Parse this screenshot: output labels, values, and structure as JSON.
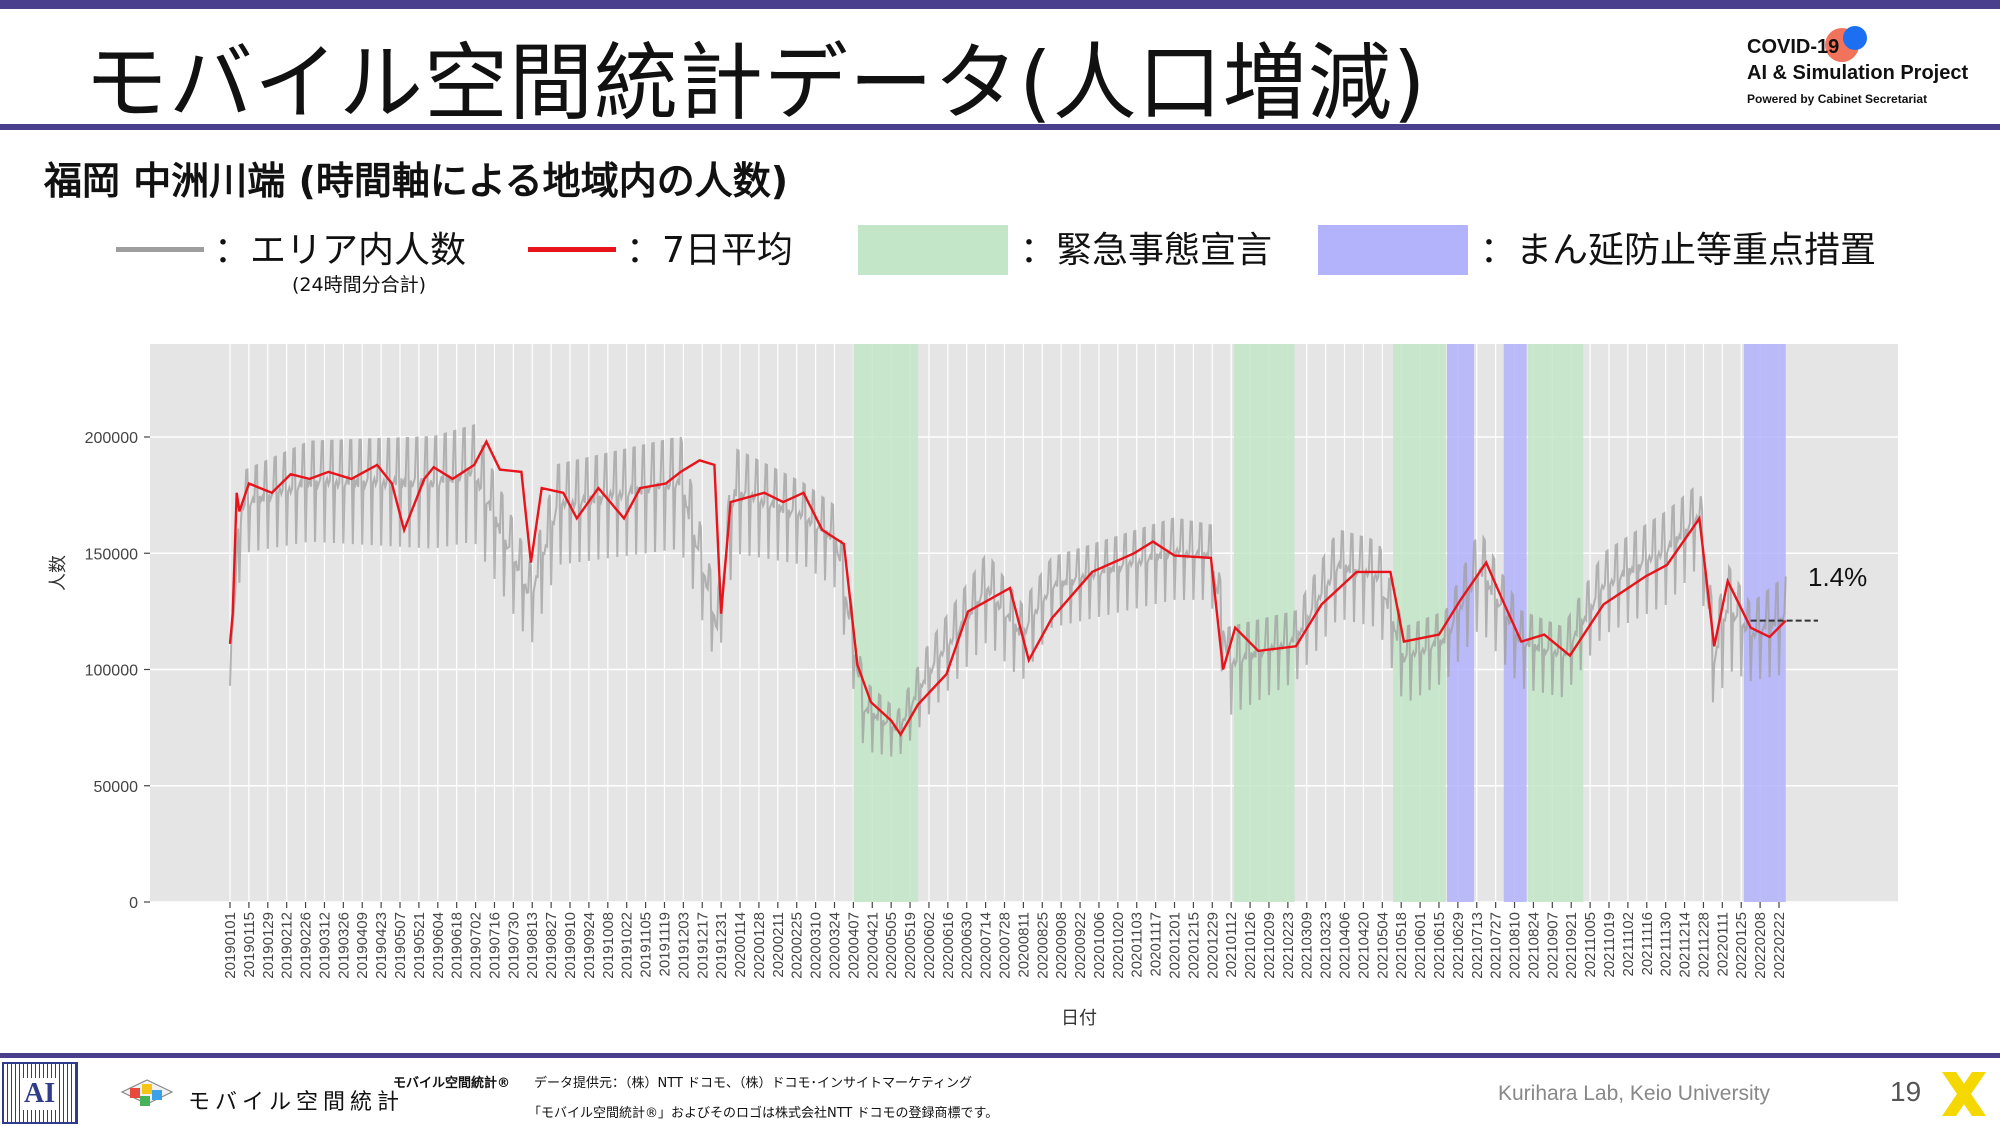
{
  "header": {
    "title": "モバイル空間統計データ(人口増減)",
    "logo_line1": "COVID-19",
    "logo_line2": "AI & Simulation Project",
    "logo_line3": "Powered by Cabinet Secretariat"
  },
  "subtitle": "福岡 中洲川端 (時間軸による地域内の人数)",
  "legend": {
    "area_count": "：エリア内人数",
    "area_count_note": "(24時間分合計)",
    "avg7": "：7日平均",
    "emergency": "：緊急事態宣言",
    "quasi": "：まん延防止等重点措置"
  },
  "colors": {
    "raw": "#9e9e9e",
    "avg": "#e8141b",
    "emergency": "#c3e6c8",
    "quasi": "#b3b3fb",
    "panel": "#e5e5e5",
    "accent": "#4a3f8c"
  },
  "annotation": {
    "change": "1.4%"
  },
  "chart_data": {
    "type": "line",
    "xlabel": "日付",
    "ylabel": "人数",
    "ylim": [
      0,
      240000
    ],
    "yticks": [
      0,
      50000,
      100000,
      150000,
      200000
    ],
    "ytick_labels": [
      "0",
      "50000",
      "100000",
      "150000",
      "200000"
    ],
    "grid": true,
    "x_ticks": [
      "20190101",
      "20190115",
      "20190129",
      "20190212",
      "20190226",
      "20190312",
      "20190326",
      "20190409",
      "20190423",
      "20190507",
      "20190521",
      "20190604",
      "20190618",
      "20190702",
      "20190716",
      "20190730",
      "20190813",
      "20190827",
      "20190910",
      "20190924",
      "20191008",
      "20191022",
      "20191105",
      "20191119",
      "20191203",
      "20191217",
      "20191231",
      "20200114",
      "20200128",
      "20200211",
      "20200225",
      "20200310",
      "20200324",
      "20200407",
      "20200421",
      "20200505",
      "20200519",
      "20200602",
      "20200616",
      "20200630",
      "20200714",
      "20200728",
      "20200811",
      "20200825",
      "20200908",
      "20200922",
      "20201006",
      "20201020",
      "20201103",
      "20201117",
      "20201201",
      "20201215",
      "20201229",
      "20210112",
      "20210126",
      "20210209",
      "20210223",
      "20210309",
      "20210323",
      "20210406",
      "20210420",
      "20210504",
      "20210518",
      "20210601",
      "20210615",
      "20210629",
      "20210713",
      "20210727",
      "20210810",
      "20210824",
      "20210907",
      "20210921",
      "20211005",
      "20211019",
      "20211102",
      "20211116",
      "20211130",
      "20211214",
      "20211228",
      "20220111",
      "20220125",
      "20220208",
      "20220222"
    ],
    "emergency_periods": [
      [
        "20200407",
        "20200525"
      ],
      [
        "20210114",
        "20210228"
      ],
      [
        "20210512",
        "20210620"
      ],
      [
        "20210820",
        "20210930"
      ]
    ],
    "quasi_periods": [
      [
        "20210621",
        "20210711"
      ],
      [
        "20210802",
        "20210819"
      ],
      [
        "20220127",
        "20220227"
      ]
    ],
    "series": [
      {
        "name": "エリア内人数",
        "anchors": [
          [
            "20190101",
            93000,
            112000
          ],
          [
            "20190110",
            150000,
            185000
          ],
          [
            "20190301",
            155000,
            198000
          ],
          [
            "20190601",
            152000,
            200000
          ],
          [
            "20190701",
            155000,
            205000
          ],
          [
            "20190812",
            110000,
            145000
          ],
          [
            "20190901",
            145000,
            188000
          ],
          [
            "20191201",
            152000,
            200000
          ],
          [
            "20191228",
            100000,
            130000
          ],
          [
            "20200110",
            150000,
            195000
          ],
          [
            "20200301",
            145000,
            180000
          ],
          [
            "20200325",
            135000,
            170000
          ],
          [
            "20200415",
            65000,
            95000
          ],
          [
            "20200510",
            62000,
            82000
          ],
          [
            "20200601",
            80000,
            110000
          ],
          [
            "20200715",
            112000,
            150000
          ],
          [
            "20200810",
            95000,
            128000
          ],
          [
            "20200901",
            118000,
            148000
          ],
          [
            "20201201",
            130000,
            165000
          ],
          [
            "20201228",
            130000,
            162000
          ],
          [
            "20210110",
            80000,
            118000
          ],
          [
            "20210301",
            95000,
            125000
          ],
          [
            "20210401",
            122000,
            160000
          ],
          [
            "20210501",
            118000,
            155000
          ],
          [
            "20210520",
            85000,
            118000
          ],
          [
            "20210620",
            95000,
            125000
          ],
          [
            "20210715",
            118000,
            160000
          ],
          [
            "20210815",
            92000,
            125000
          ],
          [
            "20210915",
            88000,
            118000
          ],
          [
            "20211015",
            115000,
            150000
          ],
          [
            "20211201",
            128000,
            168000
          ],
          [
            "20211225",
            145000,
            180000
          ],
          [
            "20220105",
            80000,
            120000
          ],
          [
            "20220115",
            100000,
            145000
          ],
          [
            "20220201",
            95000,
            128000
          ],
          [
            "20220227",
            98000,
            140000
          ]
        ]
      },
      {
        "name": "7日平均",
        "points": [
          [
            "20190101",
            111000
          ],
          [
            "20190103",
            124000
          ],
          [
            "20190106",
            176000
          ],
          [
            "20190108",
            168000
          ],
          [
            "20190115",
            180000
          ],
          [
            "20190201",
            176000
          ],
          [
            "20190215",
            184000
          ],
          [
            "20190301",
            182000
          ],
          [
            "20190315",
            185000
          ],
          [
            "20190401",
            182000
          ],
          [
            "20190420",
            188000
          ],
          [
            "20190501",
            180000
          ],
          [
            "20190510",
            160000
          ],
          [
            "20190525",
            182000
          ],
          [
            "20190601",
            187000
          ],
          [
            "20190615",
            182000
          ],
          [
            "20190701",
            188000
          ],
          [
            "20190710",
            198000
          ],
          [
            "20190720",
            186000
          ],
          [
            "20190805",
            185000
          ],
          [
            "20190812",
            146000
          ],
          [
            "20190820",
            178000
          ],
          [
            "20190905",
            176000
          ],
          [
            "20190915",
            165000
          ],
          [
            "20191001",
            178000
          ],
          [
            "20191020",
            165000
          ],
          [
            "20191101",
            178000
          ],
          [
            "20191120",
            180000
          ],
          [
            "20191201",
            185000
          ],
          [
            "20191215",
            190000
          ],
          [
            "20191226",
            188000
          ],
          [
            "20191231",
            124000
          ],
          [
            "20200107",
            172000
          ],
          [
            "20200201",
            176000
          ],
          [
            "20200215",
            172000
          ],
          [
            "20200301",
            176000
          ],
          [
            "20200315",
            160000
          ],
          [
            "20200331",
            154000
          ],
          [
            "20200410",
            102000
          ],
          [
            "20200420",
            86000
          ],
          [
            "20200505",
            78000
          ],
          [
            "20200512",
            72000
          ],
          [
            "20200525",
            85000
          ],
          [
            "20200615",
            98000
          ],
          [
            "20200701",
            125000
          ],
          [
            "20200801",
            135000
          ],
          [
            "20200815",
            104000
          ],
          [
            "20200901",
            122000
          ],
          [
            "20201001",
            142000
          ],
          [
            "20201101",
            150000
          ],
          [
            "20201115",
            155000
          ],
          [
            "20201201",
            149000
          ],
          [
            "20201228",
            148000
          ],
          [
            "20210106",
            100000
          ],
          [
            "20210115",
            118000
          ],
          [
            "20210201",
            108000
          ],
          [
            "20210301",
            110000
          ],
          [
            "20210320",
            128000
          ],
          [
            "20210415",
            142000
          ],
          [
            "20210510",
            142000
          ],
          [
            "20210520",
            112000
          ],
          [
            "20210615",
            115000
          ],
          [
            "20210701",
            130000
          ],
          [
            "20210720",
            146000
          ],
          [
            "20210801",
            130000
          ],
          [
            "20210815",
            112000
          ],
          [
            "20210901",
            115000
          ],
          [
            "20210920",
            106000
          ],
          [
            "20211015",
            128000
          ],
          [
            "20211115",
            140000
          ],
          [
            "20211201",
            145000
          ],
          [
            "20211225",
            165000
          ],
          [
            "20220105",
            110000
          ],
          [
            "20220115",
            138000
          ],
          [
            "20220201",
            118000
          ],
          [
            "20220215",
            114000
          ],
          [
            "20220227",
            121000
          ]
        ]
      }
    ]
  },
  "footer": {
    "brand": "モバイル空間統計",
    "registered": "モバイル空間統計®",
    "source": "データ提供元：（株）NTT ドコモ、（株）ドコモ･インサイトマーケティング",
    "trademark": "「モバイル空間統計®」およびそのロゴは株式会社NTT ドコモの登録商標です。",
    "lab": "Kurihara Lab, Keio University",
    "page_number": "19"
  }
}
